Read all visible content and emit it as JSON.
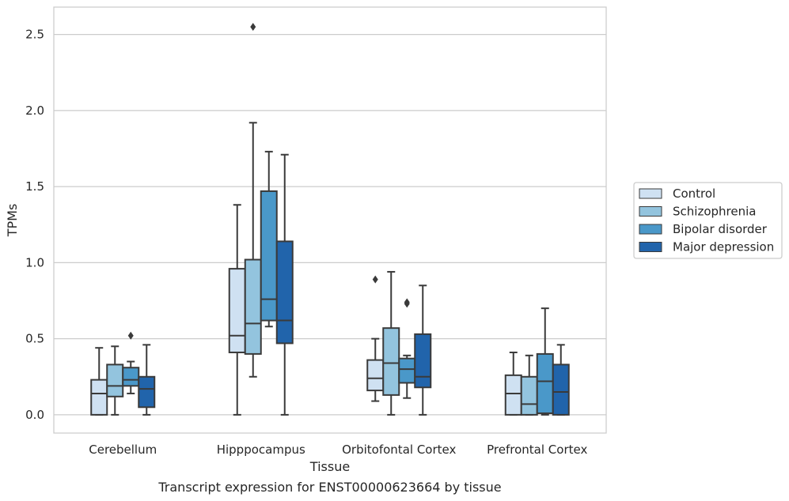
{
  "chart_data": {
    "type": "box",
    "xlabel": "Tissue",
    "ylabel": "TPMs",
    "caption": "Transcript expression for ENST00000623664 by tissue",
    "ylim": [
      -0.12,
      2.68
    ],
    "yticks": [
      "0.0",
      "0.5",
      "1.0",
      "1.5",
      "2.0",
      "2.5"
    ],
    "grid": "horizontal",
    "legend_position": "right",
    "categories": [
      "Cerebellum",
      "Hipppocampus",
      "Orbitofontal Cortex",
      "Prefrontal Cortex"
    ],
    "series": [
      {
        "name": "Control",
        "color": "#cfe1f2",
        "boxes": [
          {
            "whislo": 0.0,
            "q1": 0.0,
            "med": 0.14,
            "q3": 0.23,
            "whishi": 0.44,
            "fliers": []
          },
          {
            "whislo": 0.0,
            "q1": 0.41,
            "med": 0.52,
            "q3": 0.96,
            "whishi": 1.38,
            "fliers": []
          },
          {
            "whislo": 0.09,
            "q1": 0.16,
            "med": 0.24,
            "q3": 0.36,
            "whishi": 0.5,
            "fliers": [
              0.89
            ]
          },
          {
            "whislo": 0.0,
            "q1": 0.0,
            "med": 0.14,
            "q3": 0.26,
            "whishi": 0.41,
            "fliers": []
          }
        ]
      },
      {
        "name": "Schizophrenia",
        "color": "#93c4de",
        "boxes": [
          {
            "whislo": 0.0,
            "q1": 0.12,
            "med": 0.19,
            "q3": 0.33,
            "whishi": 0.45,
            "fliers": []
          },
          {
            "whislo": 0.25,
            "q1": 0.4,
            "med": 0.6,
            "q3": 1.02,
            "whishi": 1.92,
            "fliers": [
              2.55
            ]
          },
          {
            "whislo": 0.0,
            "q1": 0.13,
            "med": 0.34,
            "q3": 0.57,
            "whishi": 0.94,
            "fliers": []
          },
          {
            "whislo": 0.0,
            "q1": 0.0,
            "med": 0.07,
            "q3": 0.25,
            "whishi": 0.39,
            "fliers": []
          }
        ]
      },
      {
        "name": "Bipolar disorder",
        "color": "#4a98c9",
        "boxes": [
          {
            "whislo": 0.14,
            "q1": 0.19,
            "med": 0.23,
            "q3": 0.31,
            "whishi": 0.35,
            "fliers": [
              0.52
            ]
          },
          {
            "whislo": 0.58,
            "q1": 0.62,
            "med": 0.76,
            "q3": 1.47,
            "whishi": 1.73,
            "fliers": []
          },
          {
            "whislo": 0.11,
            "q1": 0.21,
            "med": 0.3,
            "q3": 0.37,
            "whishi": 0.39,
            "fliers": [
              0.73,
              0.74
            ]
          },
          {
            "whislo": 0.0,
            "q1": 0.01,
            "med": 0.22,
            "q3": 0.4,
            "whishi": 0.7,
            "fliers": []
          }
        ]
      },
      {
        "name": "Major depression",
        "color": "#2164ab",
        "boxes": [
          {
            "whislo": 0.0,
            "q1": 0.05,
            "med": 0.17,
            "q3": 0.25,
            "whishi": 0.46,
            "fliers": []
          },
          {
            "whislo": 0.0,
            "q1": 0.47,
            "med": 0.62,
            "q3": 1.14,
            "whishi": 1.71,
            "fliers": []
          },
          {
            "whislo": 0.0,
            "q1": 0.18,
            "med": 0.25,
            "q3": 0.53,
            "whishi": 0.85,
            "fliers": []
          },
          {
            "whislo": 0.0,
            "q1": 0.0,
            "med": 0.15,
            "q3": 0.33,
            "whishi": 0.46,
            "fliers": []
          }
        ]
      }
    ]
  }
}
